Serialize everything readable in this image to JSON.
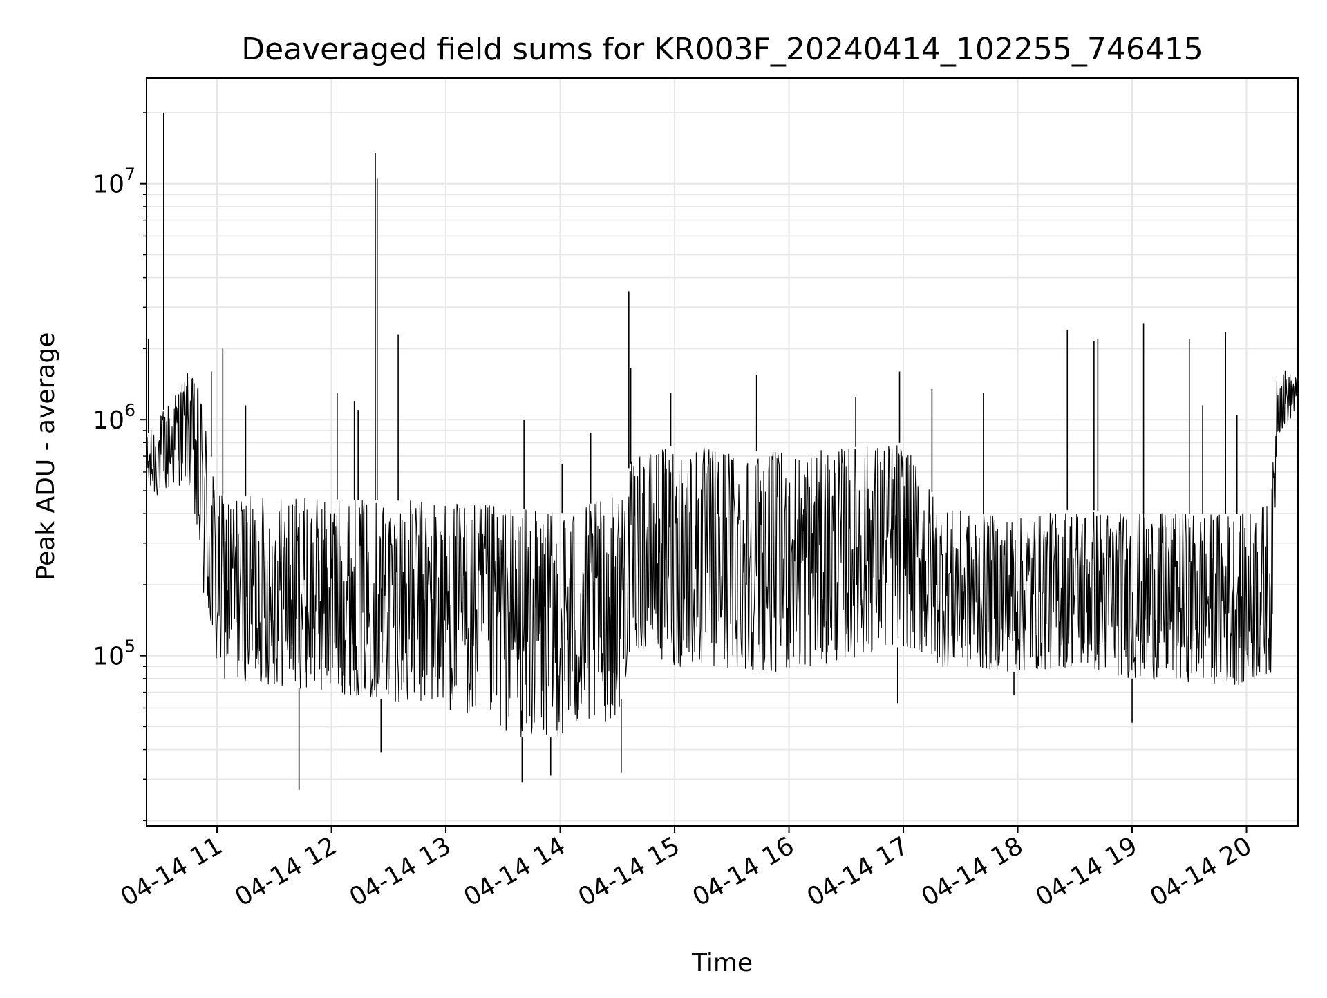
{
  "chart_data": {
    "type": "line",
    "title": "Deaveraged field sums for KR003F_20240414_102255_746415",
    "xlabel": "Time",
    "ylabel": "Peak ADU - average",
    "yscale": "log",
    "grid": true,
    "line_color": "#000000",
    "grid_color": "#e6e6e6",
    "xlim": [
      "2024-04-14 10:23",
      "2024-04-14 20:27"
    ],
    "ylim": [
      19000,
      28000000
    ],
    "xticks": [
      {
        "value": "2024-04-14 11:00",
        "label": "04-14 11"
      },
      {
        "value": "2024-04-14 12:00",
        "label": "04-14 12"
      },
      {
        "value": "2024-04-14 13:00",
        "label": "04-14 13"
      },
      {
        "value": "2024-04-14 14:00",
        "label": "04-14 14"
      },
      {
        "value": "2024-04-14 15:00",
        "label": "04-14 15"
      },
      {
        "value": "2024-04-14 16:00",
        "label": "04-14 16"
      },
      {
        "value": "2024-04-14 17:00",
        "label": "04-14 17"
      },
      {
        "value": "2024-04-14 18:00",
        "label": "04-14 18"
      },
      {
        "value": "2024-04-14 19:00",
        "label": "04-14 19"
      },
      {
        "value": "2024-04-14 20:00",
        "label": "04-14 20"
      }
    ],
    "yticks": [
      {
        "value": 100000,
        "base": "10",
        "exp": "5"
      },
      {
        "value": 1000000,
        "base": "10",
        "exp": "6"
      },
      {
        "value": 10000000,
        "base": "10",
        "exp": "7"
      }
    ],
    "band_profile": [
      {
        "t": "2024-04-14 10:23",
        "low": 450000,
        "high": 850000
      },
      {
        "t": "2024-04-14 10:45",
        "low": 550000,
        "high": 1600000
      },
      {
        "t": "2024-04-14 10:52",
        "low": 180000,
        "high": 1300000
      },
      {
        "t": "2024-04-14 11:00",
        "low": 80000,
        "high": 480000
      },
      {
        "t": "2024-04-14 12:00",
        "low": 70000,
        "high": 460000
      },
      {
        "t": "2024-04-14 13:00",
        "low": 60000,
        "high": 450000
      },
      {
        "t": "2024-04-14 13:40",
        "low": 45000,
        "high": 420000
      },
      {
        "t": "2024-04-14 14:00",
        "low": 45000,
        "high": 400000
      },
      {
        "t": "2024-04-14 14:30",
        "low": 55000,
        "high": 480000
      },
      {
        "t": "2024-04-14 14:38",
        "low": 110000,
        "high": 680000
      },
      {
        "t": "2024-04-14 15:00",
        "low": 90000,
        "high": 780000
      },
      {
        "t": "2024-04-14 16:00",
        "low": 85000,
        "high": 720000
      },
      {
        "t": "2024-04-14 17:00",
        "low": 110000,
        "high": 800000
      },
      {
        "t": "2024-04-14 17:20",
        "low": 90000,
        "high": 420000
      },
      {
        "t": "2024-04-14 18:00",
        "low": 85000,
        "high": 380000
      },
      {
        "t": "2024-04-14 18:30",
        "low": 90000,
        "high": 420000
      },
      {
        "t": "2024-04-14 19:00",
        "low": 80000,
        "high": 400000
      },
      {
        "t": "2024-04-14 20:00",
        "low": 75000,
        "high": 400000
      },
      {
        "t": "2024-04-14 20:13",
        "low": 85000,
        "high": 450000
      },
      {
        "t": "2024-04-14 20:16",
        "low": 850000,
        "high": 1700000
      },
      {
        "t": "2024-04-14 20:27",
        "low": 1100000,
        "high": 1500000
      }
    ],
    "spikes": [
      {
        "t": "2024-04-14 10:24",
        "value": 2200000
      },
      {
        "t": "2024-04-14 10:32",
        "value": 20000000
      },
      {
        "t": "2024-04-14 10:57",
        "value": 1600000
      },
      {
        "t": "2024-04-14 11:03",
        "value": 2000000
      },
      {
        "t": "2024-04-14 11:15",
        "value": 1150000
      },
      {
        "t": "2024-04-14 11:43",
        "value": 27000
      },
      {
        "t": "2024-04-14 12:03",
        "value": 1300000
      },
      {
        "t": "2024-04-14 12:12",
        "value": 1200000
      },
      {
        "t": "2024-04-14 12:14",
        "value": 1100000
      },
      {
        "t": "2024-04-14 12:23",
        "value": 13500000
      },
      {
        "t": "2024-04-14 12:24",
        "value": 10500000
      },
      {
        "t": "2024-04-14 12:26",
        "value": 39000
      },
      {
        "t": "2024-04-14 12:35",
        "value": 2300000
      },
      {
        "t": "2024-04-14 13:40",
        "value": 29000
      },
      {
        "t": "2024-04-14 13:41",
        "value": 1000000
      },
      {
        "t": "2024-04-14 13:55",
        "value": 31000
      },
      {
        "t": "2024-04-14 14:01",
        "value": 650000
      },
      {
        "t": "2024-04-14 14:16",
        "value": 880000
      },
      {
        "t": "2024-04-14 14:32",
        "value": 32000
      },
      {
        "t": "2024-04-14 14:36",
        "value": 3500000
      },
      {
        "t": "2024-04-14 14:37",
        "value": 1650000
      },
      {
        "t": "2024-04-14 14:58",
        "value": 1300000
      },
      {
        "t": "2024-04-14 15:43",
        "value": 1550000
      },
      {
        "t": "2024-04-14 16:35",
        "value": 1250000
      },
      {
        "t": "2024-04-14 16:57",
        "value": 63000
      },
      {
        "t": "2024-04-14 16:58",
        "value": 1600000
      },
      {
        "t": "2024-04-14 17:15",
        "value": 1350000
      },
      {
        "t": "2024-04-14 17:42",
        "value": 1300000
      },
      {
        "t": "2024-04-14 17:58",
        "value": 68000
      },
      {
        "t": "2024-04-14 18:26",
        "value": 2400000
      },
      {
        "t": "2024-04-14 18:40",
        "value": 2150000
      },
      {
        "t": "2024-04-14 18:42",
        "value": 2200000
      },
      {
        "t": "2024-04-14 19:00",
        "value": 52000
      },
      {
        "t": "2024-04-14 19:06",
        "value": 2550000
      },
      {
        "t": "2024-04-14 19:30",
        "value": 2200000
      },
      {
        "t": "2024-04-14 19:37",
        "value": 1150000
      },
      {
        "t": "2024-04-14 19:49",
        "value": 2350000
      },
      {
        "t": "2024-04-14 19:55",
        "value": 1050000
      }
    ]
  }
}
